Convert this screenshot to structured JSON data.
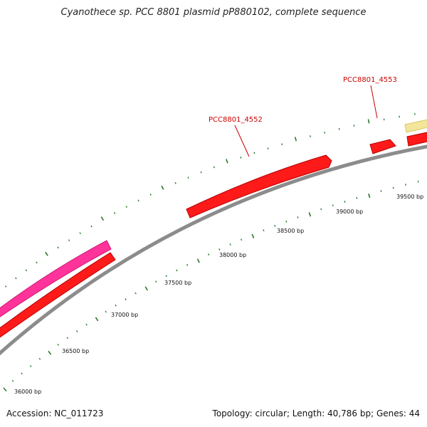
{
  "title": "Cyanothece sp. PCC 8801 plasmid pP880102, complete sequence",
  "footer": {
    "accession": "Accession: NC_011723",
    "summary": "Topology: circular; Length: 40,786 bp; Genes: 44"
  },
  "colors": {
    "backbone": "#8c8c8c",
    "gene_forward": "#ff1a1a",
    "gene_pink": "#ff3399",
    "gene_pale": "#f3e69a",
    "tick": "#2a7a2a",
    "label": "#cc0000"
  },
  "tick_labels": [
    "36000 bp",
    "36500 bp",
    "37000 bp",
    "37500 bp",
    "38000 bp",
    "38500 bp",
    "39000 bp",
    "39500 bp"
  ],
  "genes": [
    {
      "label": "PCC8801_4552",
      "color": "gene_forward",
      "strand": "+"
    },
    {
      "label": "PCC8801_4553",
      "color": "gene_forward",
      "strand": "+"
    }
  ]
}
